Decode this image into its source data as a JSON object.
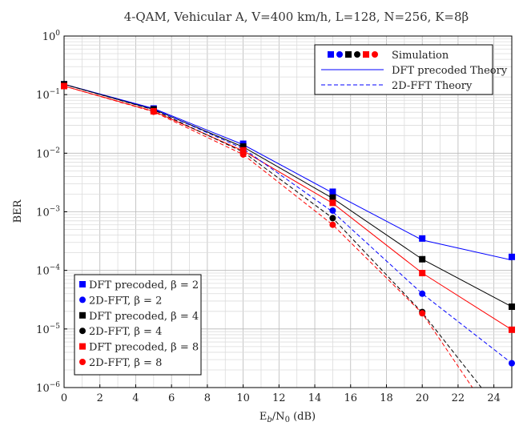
{
  "chart_data": {
    "type": "line",
    "title": "4-QAM, Vehicular A, V=400 km/h, L=128, N=256, K=8β",
    "xlabel": "E_b/N_0 (dB)",
    "ylabel": "BER",
    "xlim": [
      0,
      25
    ],
    "ylim": [
      1e-06,
      1
    ],
    "yscale": "log",
    "grid": true,
    "x_ticks": [
      "0",
      "2",
      "4",
      "6",
      "8",
      "10",
      "12",
      "14",
      "16",
      "18",
      "20",
      "22",
      "24"
    ],
    "y_ticks": [
      "10^-6",
      "10^-5",
      "10^-4",
      "10^-3",
      "10^-2",
      "10^-1",
      "10^0"
    ],
    "legend_top": {
      "position": "top-right",
      "entries": [
        "Simulation",
        "DFT precoded Theory",
        "2D-FFT Theory"
      ]
    },
    "legend_bottom": {
      "position": "bottom-left",
      "entries": [
        "DFT precoded, β = 2",
        "2D-FFT, β = 2",
        "DFT precoded, β = 4",
        "2D-FFT, β = 4",
        "DFT precoded, β = 8",
        "2D-FFT, β = 8"
      ]
    },
    "simulation": [
      {
        "name": "DFT precoded, β = 2",
        "color": "#0000ff",
        "marker": "square",
        "x": [
          0,
          5,
          10,
          15,
          20,
          25
        ],
        "y": [
          0.15,
          0.058,
          0.0145,
          0.0022,
          0.00035,
          0.00017
        ]
      },
      {
        "name": "2D-FFT, β = 2",
        "color": "#0000ff",
        "marker": "circle",
        "x": [
          0,
          5,
          10,
          15,
          20,
          25
        ],
        "y": [
          0.15,
          0.057,
          0.0125,
          0.00105,
          4e-05,
          2.6e-06
        ]
      },
      {
        "name": "DFT precoded, β = 4",
        "color": "#000000",
        "marker": "square",
        "x": [
          0,
          5,
          10,
          15,
          20,
          25
        ],
        "y": [
          0.15,
          0.056,
          0.013,
          0.00175,
          0.000155,
          2.4e-05
        ]
      },
      {
        "name": "2D-FFT, β = 4",
        "color": "#000000",
        "marker": "circle",
        "x": [
          0,
          5,
          10,
          15,
          20
        ],
        "y": [
          0.15,
          0.055,
          0.0105,
          0.00078,
          1.95e-05
        ]
      },
      {
        "name": "DFT precoded, β = 8",
        "color": "#ff0000",
        "marker": "square",
        "x": [
          0,
          5,
          10,
          15,
          20,
          25
        ],
        "y": [
          0.14,
          0.052,
          0.0112,
          0.00142,
          9e-05,
          9.7e-06
        ]
      },
      {
        "name": "2D-FFT, β = 8",
        "color": "#ff0000",
        "marker": "circle",
        "x": [
          0,
          5,
          10,
          15,
          20
        ],
        "y": [
          0.14,
          0.051,
          0.0095,
          0.0006,
          1.85e-05
        ]
      }
    ],
    "theory": [
      {
        "color": "#0000ff",
        "style": "solid",
        "x": [
          0,
          5,
          10,
          15,
          20,
          25
        ],
        "y": [
          0.15,
          0.058,
          0.014,
          0.0021,
          0.00033,
          0.00015
        ]
      },
      {
        "color": "#000000",
        "style": "solid",
        "x": [
          0,
          5,
          10,
          15,
          20,
          25
        ],
        "y": [
          0.15,
          0.056,
          0.0128,
          0.0017,
          0.000155,
          2.4e-05
        ]
      },
      {
        "color": "#ff0000",
        "style": "solid",
        "x": [
          0,
          5,
          10,
          15,
          20,
          25
        ],
        "y": [
          0.14,
          0.052,
          0.011,
          0.0014,
          9e-05,
          9.7e-06
        ]
      },
      {
        "color": "#0000ff",
        "style": "dashed",
        "x": [
          0,
          5,
          10,
          15,
          20,
          25
        ],
        "y": [
          0.15,
          0.057,
          0.012,
          0.001,
          4e-05,
          2.6e-06
        ]
      },
      {
        "color": "#000000",
        "style": "dashed",
        "x": [
          0,
          5,
          10,
          15,
          20,
          23.3
        ],
        "y": [
          0.15,
          0.055,
          0.0105,
          0.00078,
          1.9e-05,
          1e-06
        ]
      },
      {
        "color": "#ff0000",
        "style": "dashed",
        "x": [
          0,
          5,
          10,
          15,
          20,
          22.8
        ],
        "y": [
          0.14,
          0.051,
          0.0095,
          0.0006,
          1.85e-05,
          1e-06
        ]
      }
    ]
  }
}
